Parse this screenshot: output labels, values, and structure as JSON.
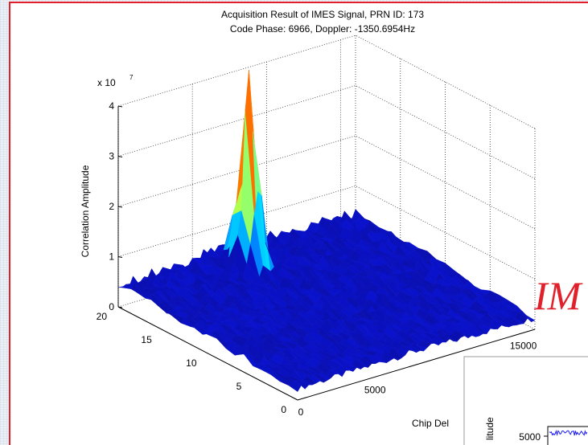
{
  "chart_data": [
    {
      "type": "surface3d",
      "title": "Acquisition Result of IMES Signal, PRN ID: 173",
      "subtitle": "Code Phase: 6966,  Doppler: -1350.6954Hz",
      "zlabel": "Correlation Amplitude",
      "xlabel": "Chip Del",
      "z_exponent": "x 10",
      "z_exponent_power": "7",
      "zlim": [
        0,
        4
      ],
      "zticks": [
        "0",
        "1",
        "2",
        "3",
        "4"
      ],
      "yticks": [
        "0",
        "5",
        "10",
        "15",
        "20"
      ],
      "xticks": [
        "0",
        "5000",
        "15000"
      ],
      "ylim": [
        0,
        20
      ],
      "xlim": [
        0,
        16000
      ],
      "grid": true,
      "colormap": "jet",
      "peak": {
        "code_phase": 6966,
        "doppler_bin": 17,
        "amplitude": 3.75
      },
      "noise_floor": 0.45
    },
    {
      "type": "line",
      "ylabel": "litude",
      "yticks": [
        "5000"
      ],
      "partially_visible": true
    }
  ],
  "overlay_text": "IM",
  "colors": {
    "frame": "#e0202a",
    "surface_low": "#0a10c8",
    "overlay_text": "#e0202a"
  }
}
